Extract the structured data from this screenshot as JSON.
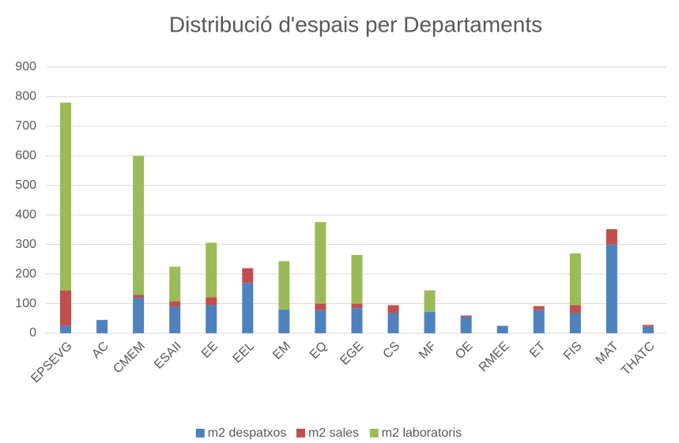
{
  "chart_data": {
    "type": "stacked_bar",
    "title": "Distribució d'espais per Departaments",
    "categories": [
      "EPSEVG",
      "AC",
      "CMEM",
      "ESAII",
      "EE",
      "EEL",
      "EM",
      "EQ",
      "EGE",
      "CS",
      "MF",
      "OE",
      "RMEE",
      "ET",
      "FIS",
      "MAT",
      "THATC"
    ],
    "series": [
      {
        "name": "m2 despatxos",
        "color": "#4f81bd",
        "values": [
          25,
          45,
          120,
          90,
          95,
          170,
          80,
          78,
          85,
          68,
          72,
          55,
          25,
          78,
          68,
          300,
          22
        ]
      },
      {
        "name": "m2 sales",
        "color": "#c0504d",
        "values": [
          120,
          0,
          10,
          18,
          27,
          50,
          0,
          22,
          15,
          27,
          0,
          5,
          0,
          14,
          27,
          52,
          6
        ]
      },
      {
        "name": "m2 laboratoris",
        "color": "#9bbb59",
        "values": [
          635,
          0,
          470,
          117,
          184,
          0,
          164,
          276,
          165,
          0,
          73,
          0,
          0,
          0,
          175,
          0,
          0
        ]
      }
    ],
    "ylim": [
      0,
      900
    ],
    "yticks": [
      0,
      100,
      200,
      300,
      400,
      500,
      600,
      700,
      800,
      900
    ],
    "grid": true,
    "legend": "bottom"
  }
}
